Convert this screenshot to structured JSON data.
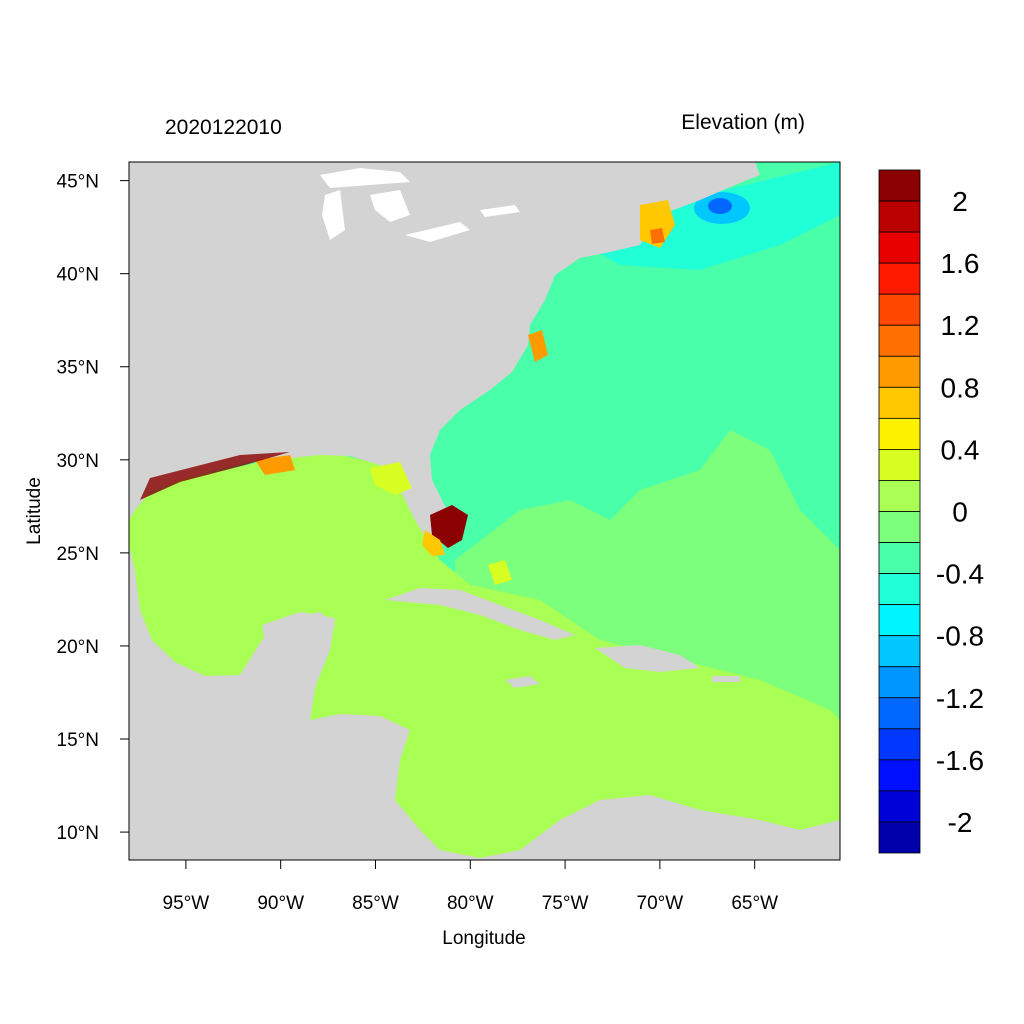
{
  "map": {
    "left_title": "2020122010",
    "right_title": "Elevation (m)",
    "xlabel": "Longitude",
    "ylabel": "Latitude",
    "lon_range": [
      -98,
      -60.5
    ],
    "lat_range": [
      8.5,
      46
    ],
    "x_ticks": [
      {
        "value": -95,
        "label": "95°W"
      },
      {
        "value": -90,
        "label": "90°W"
      },
      {
        "value": -85,
        "label": "85°W"
      },
      {
        "value": -80,
        "label": "80°W"
      },
      {
        "value": -75,
        "label": "75°W"
      },
      {
        "value": -70,
        "label": "70°W"
      },
      {
        "value": -65,
        "label": "65°W"
      }
    ],
    "y_ticks": [
      {
        "value": 45,
        "label": "45°N"
      },
      {
        "value": 40,
        "label": "40°N"
      },
      {
        "value": 35,
        "label": "35°N"
      },
      {
        "value": 30,
        "label": "30°N"
      },
      {
        "value": 25,
        "label": "25°N"
      },
      {
        "value": 20,
        "label": "20°N"
      },
      {
        "value": 15,
        "label": "15°N"
      },
      {
        "value": 10,
        "label": "10°N"
      }
    ],
    "colors": {
      "land": "#d3d3d3",
      "lakes": "#ffffff",
      "gulf_caribbean": "#aaff55",
      "atlantic_zero": "#7cff7c",
      "atlantic_neg": "#49ffaa",
      "gulf_maine": "#2affd5",
      "surge_high": "#8b0000"
    }
  },
  "colorbar": {
    "levels": [
      2.2,
      2,
      1.8,
      1.6,
      1.4,
      1.2,
      1.0,
      0.8,
      0.6,
      0.4,
      0.2,
      0,
      -0.2,
      -0.4,
      -0.6,
      -0.8,
      -1.0,
      -1.2,
      -1.4,
      -1.6,
      -1.8,
      -2
    ],
    "colors": [
      "#8b0000",
      "#bb0000",
      "#e60000",
      "#ff1a00",
      "#ff4800",
      "#ff7000",
      "#ff9a00",
      "#ffc800",
      "#fff200",
      "#d8ff22",
      "#aaff55",
      "#7cff7c",
      "#49ffaa",
      "#20ffd8",
      "#00f4ff",
      "#00c8ff",
      "#0096ff",
      "#0068ff",
      "#0038ff",
      "#0010ff",
      "#0000d8",
      "#0000aa"
    ],
    "labels": [
      "2",
      "1.6",
      "1.2",
      "0.8",
      "0.4",
      "0",
      "-0.4",
      "-0.8",
      "-1.2",
      "-1.6",
      "-2"
    ]
  }
}
